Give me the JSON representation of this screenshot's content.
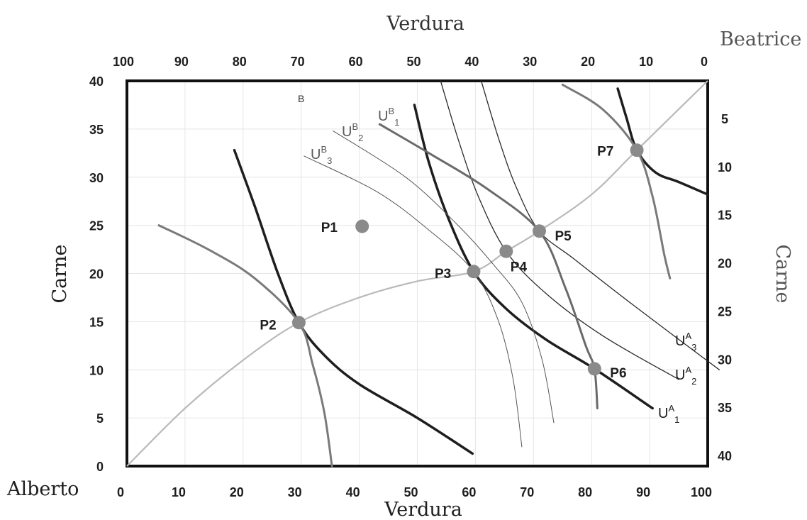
{
  "titles": {
    "top": "Verdura",
    "bottom": "Verdura",
    "left": "Carne",
    "right": "Carne",
    "origin_a": "Alberto",
    "origin_b": "Beatrice"
  },
  "ticks": {
    "bottom": [
      "0",
      "10",
      "20",
      "30",
      "40",
      "50",
      "60",
      "70",
      "80",
      "90",
      "100"
    ],
    "top": [
      "100",
      "90",
      "80",
      "70",
      "60",
      "50",
      "40",
      "30",
      "20",
      "10",
      "0"
    ],
    "left": [
      "0",
      "5",
      "10",
      "15",
      "20",
      "25",
      "30",
      "35",
      "40"
    ],
    "right": [
      "40",
      "35",
      "30",
      "25",
      "20",
      "15",
      "10",
      "5"
    ]
  },
  "labels": {
    "b_mark": "B",
    "ua1": {
      "base": "U",
      "sup": "A",
      "sub": "1"
    },
    "ua2": {
      "base": "U",
      "sup": "A",
      "sub": "2"
    },
    "ua3": {
      "base": "U",
      "sup": "A",
      "sub": "3"
    },
    "ub1": {
      "base": "U",
      "sup": "B",
      "sub": "1"
    },
    "ub2": {
      "base": "U",
      "sup": "B",
      "sub": "2"
    },
    "ub3": {
      "base": "U",
      "sup": "B",
      "sub": "3"
    }
  },
  "points": [
    {
      "label": "P1",
      "x": 40.5,
      "y": 24.9
    },
    {
      "label": "P2",
      "x": 29.6,
      "y": 14.9
    },
    {
      "label": "P3",
      "x": 59.7,
      "y": 20.2
    },
    {
      "label": "P4",
      "x": 65.3,
      "y": 22.3
    },
    {
      "label": "P5",
      "x": 71.0,
      "y": 24.4
    },
    {
      "label": "P6",
      "x": 80.5,
      "y": 10.1
    },
    {
      "label": "P7",
      "x": 87.8,
      "y": 32.8
    }
  ],
  "contract_curve": [
    [
      0,
      0
    ],
    [
      10,
      6
    ],
    [
      20,
      11
    ],
    [
      29.6,
      14.9
    ],
    [
      40,
      17.5
    ],
    [
      50,
      19.2
    ],
    [
      59.7,
      20.2
    ],
    [
      65.3,
      22.3
    ],
    [
      71,
      24.4
    ],
    [
      80,
      28.2
    ],
    [
      87.8,
      32.8
    ],
    [
      100,
      40
    ]
  ],
  "indifference_curves": [
    {
      "name": "UA1",
      "color": "#1e1e1e",
      "width": 3.5,
      "pts": [
        [
          18.5,
          32.8
        ],
        [
          22,
          27
        ],
        [
          26,
          20
        ],
        [
          29.6,
          14.9
        ],
        [
          34,
          11.5
        ],
        [
          40,
          8.5
        ],
        [
          50,
          5
        ],
        [
          59.5,
          1.3
        ]
      ]
    },
    {
      "name": "UA1",
      "color": "#1e1e1e",
      "width": 3.5,
      "pts": [
        [
          49.5,
          37.5
        ],
        [
          52,
          31.5
        ],
        [
          55.5,
          25.5
        ],
        [
          59.7,
          20.2
        ],
        [
          65,
          16.5
        ],
        [
          72,
          13.2
        ],
        [
          80.5,
          10.1
        ],
        [
          90.5,
          6
        ]
      ]
    },
    {
      "name": "UA2",
      "color": "#2a2a2a",
      "width": 1.3,
      "pts": [
        [
          54,
          40
        ],
        [
          57,
          34
        ],
        [
          60.5,
          28
        ],
        [
          65.3,
          22.3
        ],
        [
          72,
          18
        ],
        [
          82,
          13.5
        ],
        [
          95,
          9
        ]
      ]
    },
    {
      "name": "UA3",
      "color": "#2a2a2a",
      "width": 1.3,
      "pts": [
        [
          61,
          40
        ],
        [
          64,
          34
        ],
        [
          67,
          29
        ],
        [
          71,
          24.4
        ],
        [
          77,
          21.5
        ],
        [
          87,
          16.8
        ],
        [
          102,
          10
        ]
      ]
    },
    {
      "name": "UA4",
      "color": "#1e1e1e",
      "width": 3.5,
      "pts": [
        [
          84.5,
          39.2
        ],
        [
          86,
          36.2
        ],
        [
          87.8,
          32.8
        ],
        [
          91,
          30.5
        ],
        [
          95,
          29.5
        ],
        [
          100,
          28.2
        ]
      ]
    },
    {
      "name": "UB",
      "color": "#7a7a7a",
      "width": 3.0,
      "pts": [
        [
          5.5,
          25
        ],
        [
          14,
          22.5
        ],
        [
          22,
          19.5
        ],
        [
          29.6,
          14.9
        ],
        [
          32,
          10.5
        ],
        [
          34,
          5.5
        ],
        [
          35.3,
          0
        ]
      ]
    },
    {
      "name": "UB1",
      "color": "#6a6a6a",
      "width": 3.0,
      "pts": [
        [
          43.5,
          35.5
        ],
        [
          52,
          32.5
        ],
        [
          62,
          28.8
        ],
        [
          71,
          24.4
        ],
        [
          75.5,
          18.5
        ],
        [
          79,
          12.5
        ],
        [
          80.5,
          10.1
        ],
        [
          81,
          6
        ]
      ]
    },
    {
      "name": "UB2",
      "color": "#555555",
      "width": 1.0,
      "pts": [
        [
          35.5,
          34.8
        ],
        [
          48,
          30
        ],
        [
          57,
          25
        ],
        [
          63,
          21
        ],
        [
          68,
          17
        ],
        [
          71.5,
          11
        ],
        [
          73.5,
          4.5
        ]
      ]
    },
    {
      "name": "UB3",
      "color": "#555555",
      "width": 1.0,
      "pts": [
        [
          30.5,
          32.2
        ],
        [
          43,
          28.5
        ],
        [
          52,
          24.5
        ],
        [
          59.7,
          20.2
        ],
        [
          64,
          15
        ],
        [
          66.5,
          9
        ],
        [
          68,
          2
        ]
      ]
    },
    {
      "name": "UB4",
      "color": "#7a7a7a",
      "width": 3.0,
      "pts": [
        [
          75,
          39.6
        ],
        [
          82,
          37
        ],
        [
          87.8,
          32.8
        ],
        [
          90.5,
          28
        ],
        [
          92.5,
          22
        ],
        [
          93.5,
          19.5
        ]
      ]
    }
  ],
  "colors": {
    "frame": "#111111",
    "contract": "#b9b9b9",
    "point": "#8a8a8a",
    "gray_text": "#555555"
  }
}
